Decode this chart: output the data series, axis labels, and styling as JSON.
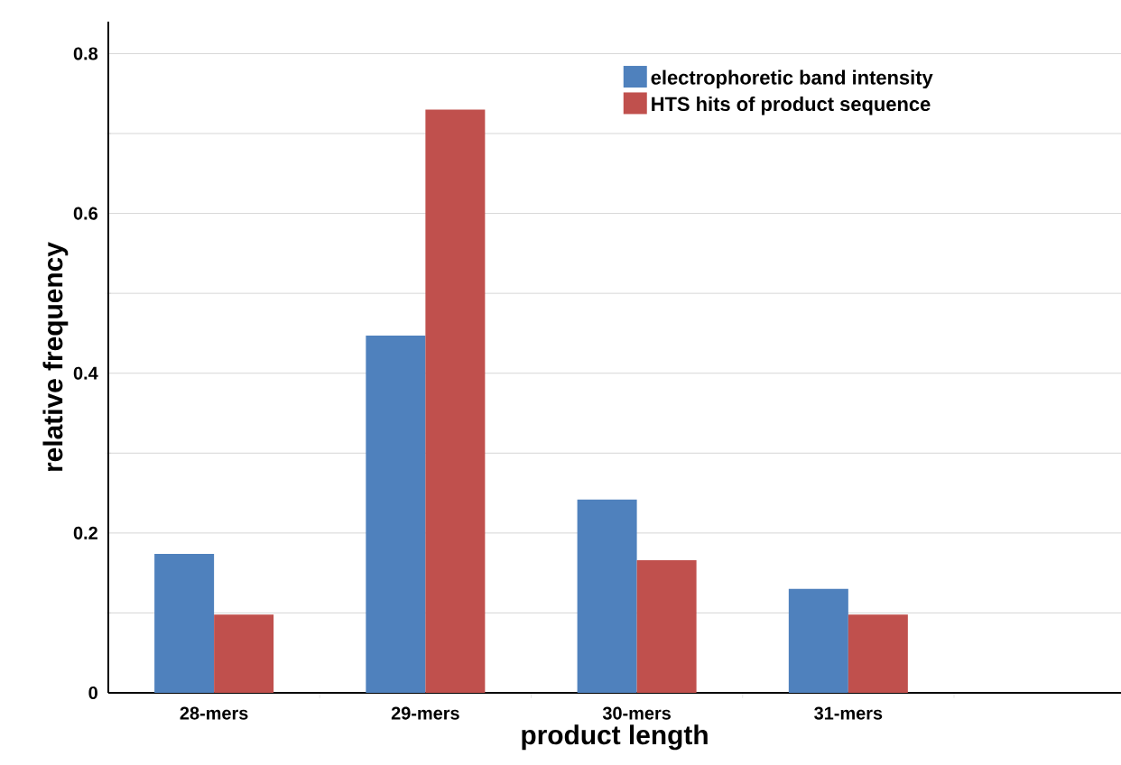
{
  "chart_data": {
    "type": "bar",
    "xlabel": "product length",
    "ylabel": "relative frequency",
    "categories": [
      "28-mers",
      "29-mers",
      "30-mers",
      "31-mers"
    ],
    "series": [
      {
        "name": "electrophoretic band intensity",
        "color": "#4f81bd",
        "values": [
          0.174,
          0.447,
          0.242,
          0.13
        ]
      },
      {
        "name": "HTS hits of product sequence",
        "color": "#c0504d",
        "values": [
          0.098,
          0.73,
          0.166,
          0.098
        ]
      }
    ],
    "ylim": [
      0,
      0.84
    ],
    "yticks": [
      0,
      0.2,
      0.4,
      0.6,
      0.8
    ],
    "grid": "y",
    "legend": "top right"
  }
}
